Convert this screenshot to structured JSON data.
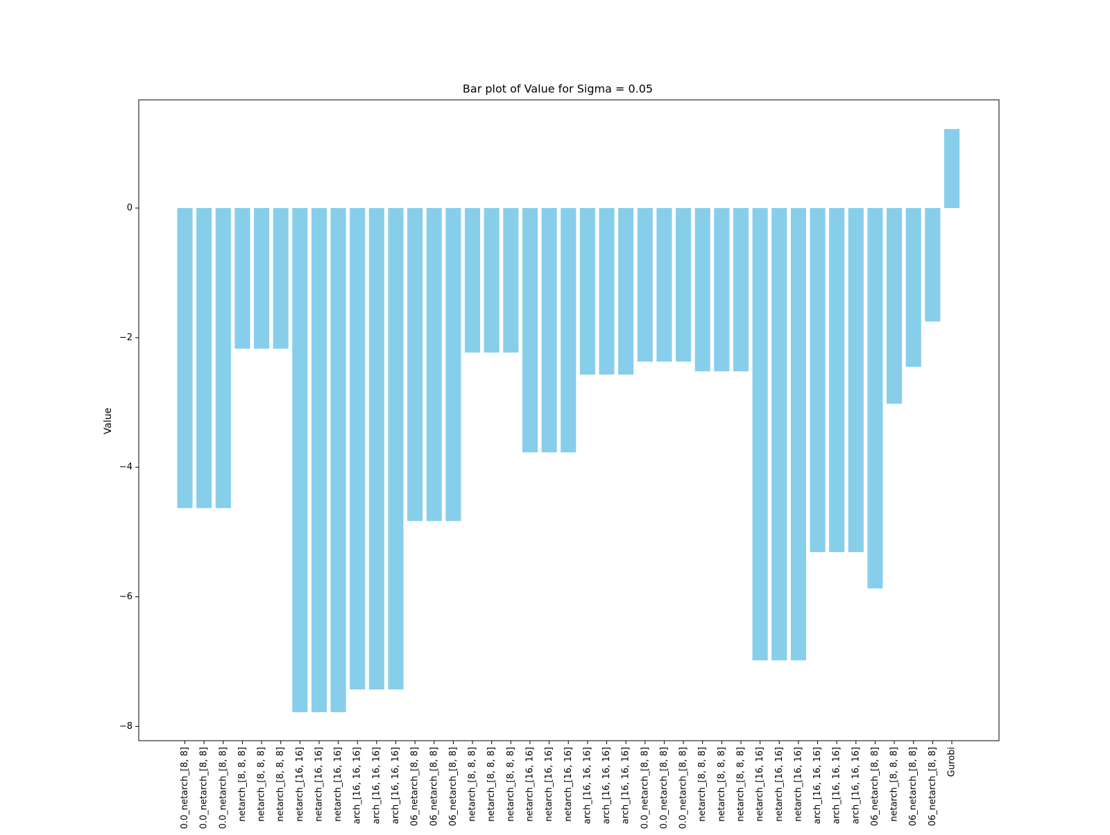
{
  "chart_data": {
    "type": "bar",
    "title": "Bar plot of Value for Sigma = 0.05",
    "xlabel": "",
    "ylabel": "Value",
    "ylim": [
      -8.22,
      1.67
    ],
    "yticks": [
      0,
      -2,
      -4,
      -6,
      -8
    ],
    "grid": false,
    "bar_color": "#87ceeb",
    "categories": [
      "0.0_netarch_[8, 8]",
      "0.0_netarch_[8, 8]",
      "0.0_netarch_[8, 8]",
      "netarch_[8, 8, 8]",
      "netarch_[8, 8, 8]",
      "netarch_[8, 8, 8]",
      "netarch_[16, 16]",
      "netarch_[16, 16]",
      "netarch_[16, 16]",
      "arch_[16, 16, 16]",
      "arch_[16, 16, 16]",
      "arch_[16, 16, 16]",
      "06_netarch_[8, 8]",
      "06_netarch_[8, 8]",
      "06_netarch_[8, 8]",
      "netarch_[8, 8, 8]",
      "netarch_[8, 8, 8]",
      "netarch_[8, 8, 8]",
      "netarch_[16, 16]",
      "netarch_[16, 16]",
      "netarch_[16, 16]",
      "arch_[16, 16, 16]",
      "arch_[16, 16, 16]",
      "arch_[16, 16, 16]",
      "0.0_netarch_[8, 8]",
      "0.0_netarch_[8, 8]",
      "0.0_netarch_[8, 8]",
      "netarch_[8, 8, 8]",
      "netarch_[8, 8, 8]",
      "netarch_[8, 8, 8]",
      "netarch_[16, 16]",
      "netarch_[16, 16]",
      "netarch_[16, 16]",
      "arch_[16, 16, 16]",
      "arch_[16, 16, 16]",
      "arch_[16, 16, 16]",
      "06_netarch_[8, 8]",
      "netarch_[8, 8, 8]",
      "06_netarch_[8, 8]",
      "06_netarch_[8, 8]",
      "Gurobi"
    ],
    "values": [
      -4.63,
      -4.63,
      -4.63,
      -2.17,
      -2.17,
      -2.17,
      -7.78,
      -7.78,
      -7.78,
      -7.43,
      -7.43,
      -7.43,
      -4.83,
      -4.83,
      -4.83,
      -2.23,
      -2.23,
      -2.23,
      -3.77,
      -3.77,
      -3.77,
      -2.57,
      -2.57,
      -2.57,
      -2.37,
      -2.37,
      -2.37,
      -2.52,
      -2.52,
      -2.52,
      -6.98,
      -6.98,
      -6.98,
      -5.31,
      -5.31,
      -5.31,
      -5.87,
      -3.02,
      -2.45,
      -1.75,
      1.22
    ]
  }
}
